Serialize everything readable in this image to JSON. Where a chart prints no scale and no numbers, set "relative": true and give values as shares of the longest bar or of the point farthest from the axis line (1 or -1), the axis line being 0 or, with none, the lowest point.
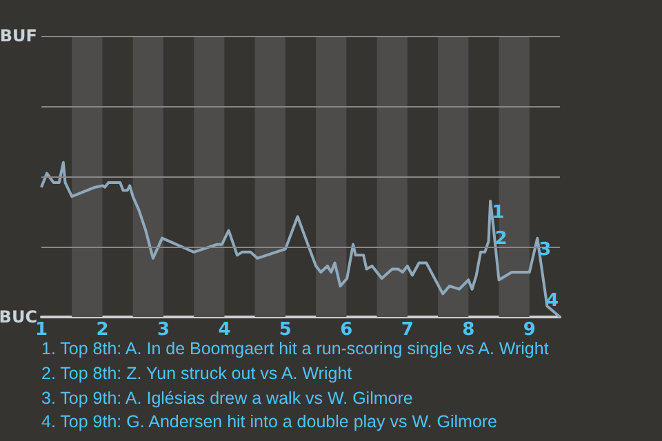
{
  "chart_data": {
    "type": "line",
    "color": "#8fa9bc",
    "relative": true,
    "x": [
      1,
      1.09,
      1.2,
      1.29,
      1.36,
      1.39,
      1.5,
      1.88,
      2.01,
      2.04,
      2.1,
      2.29,
      2.34,
      2.41,
      2.45,
      2.5,
      2.6,
      2.71,
      2.83,
      2.98,
      3.5,
      3.88,
      3.96,
      4.07,
      4.21,
      4.29,
      4.43,
      4.54,
      5,
      5.2,
      5.33,
      5.5,
      5.58,
      5.69,
      5.75,
      5.81,
      5.9,
      6.01,
      6.11,
      6.15,
      6.28,
      6.33,
      6.42,
      6.58,
      6.75,
      6.85,
      6.92,
      7,
      7.08,
      7.19,
      7.31,
      7.58,
      7.69,
      7.85,
      8,
      8.06,
      8.13,
      8.2,
      8.27,
      8.33,
      8.36,
      8.41,
      8.5,
      8.71,
      9,
      9.13,
      9.25,
      9.29,
      9.5
    ],
    "values": [
      0.84,
      0.93,
      0.87,
      0.87,
      1,
      0.87,
      0.78,
      0.84,
      0.85,
      0.84,
      0.87,
      0.87,
      0.82,
      0.82,
      0.85,
      0.78,
      0.69,
      0.56,
      0.38,
      0.51,
      0.42,
      0.47,
      0.47,
      0.56,
      0.4,
      0.42,
      0.42,
      0.38,
      0.44,
      0.65,
      0.51,
      0.33,
      0.29,
      0.33,
      0.29,
      0.35,
      0.2,
      0.25,
      0.47,
      0.4,
      0.4,
      0.31,
      0.33,
      0.25,
      0.31,
      0.31,
      0.29,
      0.33,
      0.27,
      0.35,
      0.35,
      0.15,
      0.2,
      0.18,
      0.24,
      0.18,
      0.27,
      0.42,
      0.42,
      0.49,
      0.75,
      0.58,
      0.24,
      0.29,
      0.29,
      0.51,
      0.18,
      0.07,
      0
    ],
    "xlim": [
      1,
      9.5
    ],
    "xticks": [
      1,
      2,
      3,
      4,
      5,
      6,
      7,
      8,
      9
    ],
    "marker": "none",
    "line_style": "solid",
    "ref_lines": [
      {
        "axis": "y",
        "value": 0.45,
        "label": null,
        "color": "#8a8886"
      },
      {
        "axis": "y",
        "value": 0.91,
        "label": null,
        "color": "#8a8886"
      },
      {
        "axis": "y",
        "value": 1.36,
        "label": null,
        "color": "#8a8886"
      },
      {
        "axis": "y",
        "value": 1.82,
        "label": "BUF",
        "color": "#8a8886"
      }
    ],
    "bands": [
      {
        "axis": "x",
        "from": 1.5,
        "to": 2,
        "color": "#4e4c4a"
      },
      {
        "axis": "x",
        "from": 2.5,
        "to": 3,
        "color": "#4e4c4a"
      },
      {
        "axis": "x",
        "from": 3.5,
        "to": 4,
        "color": "#4e4c4a"
      },
      {
        "axis": "x",
        "from": 4.5,
        "to": 5,
        "color": "#4e4c4a"
      },
      {
        "axis": "x",
        "from": 5.5,
        "to": 6,
        "color": "#4e4c4a"
      },
      {
        "axis": "x",
        "from": 6.5,
        "to": 7,
        "color": "#4e4c4a"
      },
      {
        "axis": "x",
        "from": 7.5,
        "to": 8,
        "color": "#4e4c4a"
      },
      {
        "axis": "x",
        "from": 8.5,
        "to": 9,
        "color": "#4e4c4a"
      }
    ],
    "annotations": [
      "BUC",
      {
        "text": "1",
        "x": 8.36,
        "y": 0.75
      },
      {
        "text": "2",
        "x": 8.41,
        "y": 0.58
      },
      {
        "text": "3",
        "x": 9.13,
        "y": 0.51
      },
      {
        "text": "4",
        "x": 9.25,
        "y": 0.18
      },
      "1. Top 8th: A. In de Boomgaert hit a run-scoring single vs A. Wright",
      "2. Top 8th: Z. Yun struck out vs A. Wright",
      "3. Top 9th: A. Iglésias drew a walk vs W. Gilmore",
      "4. Top 9th: G. Andersen hit into a double play vs W. Gilmore"
    ]
  }
}
